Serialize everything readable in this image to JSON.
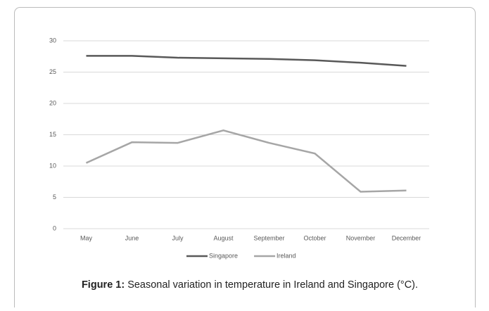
{
  "chart_data": {
    "type": "line",
    "categories": [
      "May",
      "June",
      "July",
      "August",
      "September",
      "October",
      "November",
      "December"
    ],
    "series": [
      {
        "name": "Singapore",
        "color": "#595959",
        "values": [
          27.6,
          27.6,
          27.3,
          27.2,
          27.1,
          26.9,
          26.5,
          26.0
        ]
      },
      {
        "name": "Ireland",
        "color": "#a6a6a6",
        "values": [
          10.5,
          13.8,
          13.7,
          15.7,
          13.7,
          12.0,
          5.9,
          6.1
        ]
      }
    ],
    "ylim": [
      0,
      30
    ],
    "yticks": [
      0,
      5,
      10,
      15,
      20,
      25,
      30
    ],
    "grid": true,
    "legend": "bottom",
    "caption_label": "Figure 1:",
    "caption": "Seasonal variation in temperature in Ireland and Singapore (°C)."
  }
}
